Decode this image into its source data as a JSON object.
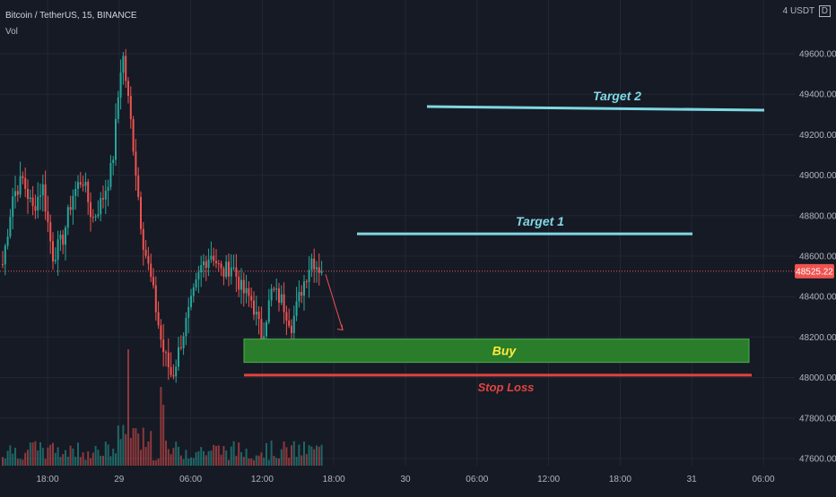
{
  "header": {
    "symbol": "Bitcoin / TetherUS, 15, BINANCE",
    "indicator": "Vol"
  },
  "currency": {
    "prefix": "4",
    "label": "USDT",
    "suffix": "D"
  },
  "colors": {
    "background": "#161a25",
    "grid": "#232734",
    "bull": "#26a69a",
    "bear": "#ef5350",
    "target": "#7fd8e3",
    "buy_fill": "#2a7d2a",
    "buy_text": "#ffeb3b",
    "stop": "#e0443e",
    "price_tag": "#ef5350"
  },
  "chart_data": {
    "type": "candlestick",
    "x_ticks": [
      "18:00",
      "29",
      "06:00",
      "12:00",
      "18:00",
      "30",
      "06:00",
      "12:00",
      "18:00",
      "31",
      "06:00"
    ],
    "y_ticks": [
      49600,
      49400,
      49200,
      49000,
      48800,
      48600,
      48400,
      48200,
      48000,
      47800,
      47600
    ],
    "y_tick_labels": [
      "49600.00",
      "49400.00",
      "49200.00",
      "49000.00",
      "48800.00",
      "48600.00",
      "48400.00",
      "48200.00",
      "48000.00",
      "47800.00",
      "47600.00"
    ],
    "ylim": [
      47550,
      49750
    ],
    "last_price": 48525.22,
    "last_price_label": "48525.22",
    "close_path": [
      48560,
      48900,
      48980,
      48830,
      48950,
      48600,
      48680,
      48900,
      48990,
      48780,
      48880,
      49050,
      49620,
      49200,
      48700,
      48450,
      48150,
      48000,
      48200,
      48380,
      48560,
      48620,
      48510,
      48560,
      48430,
      48380,
      48200,
      48430,
      48380,
      48260,
      48440,
      48590,
      48525
    ],
    "annotations": {
      "target2": {
        "label": "Target 2",
        "price": 49330
      },
      "target1": {
        "label": "Target 1",
        "price": 48710
      },
      "buy": {
        "label": "Buy",
        "price_top": 48190,
        "price_bottom": 48075
      },
      "stop_loss": {
        "label": "Stop Loss",
        "price": 48012
      }
    }
  }
}
